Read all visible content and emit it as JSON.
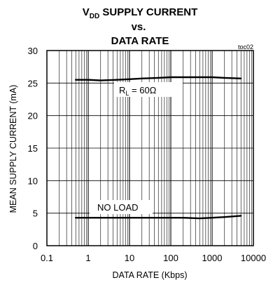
{
  "chart_data": {
    "type": "line",
    "title": {
      "line1_main": "V",
      "line1_sub": "DD",
      "line1_rest": " SUPPLY CURRENT",
      "line2": "vs.",
      "line3": "DATA RATE"
    },
    "figure_code": "toc02",
    "xlabel": "DATA RATE (Kbps)",
    "ylabel": "MEAN SUPPLY CURRENT  (mA)",
    "x_scale": "log",
    "xlim": [
      0.1,
      10000
    ],
    "ylim": [
      0,
      30
    ],
    "x_ticks": [
      "0.1",
      "1",
      "10",
      "100",
      "1000",
      "10000"
    ],
    "y_ticks": [
      "0",
      "5",
      "10",
      "15",
      "20",
      "25",
      "30"
    ],
    "grid": true,
    "series": [
      {
        "label_main": "R",
        "label_sub": "L",
        "label_rest": " = 60Ω",
        "x": [
          0.5,
          1,
          2,
          5,
          10,
          20,
          50,
          100,
          200,
          500,
          1000,
          2000,
          5000
        ],
        "y": [
          25.5,
          25.5,
          25.4,
          25.5,
          25.6,
          25.7,
          25.8,
          25.9,
          25.9,
          25.9,
          25.9,
          25.8,
          25.7
        ]
      },
      {
        "label": "NO LOAD",
        "x": [
          0.5,
          1,
          2,
          5,
          10,
          20,
          50,
          100,
          200,
          500,
          1000,
          2000,
          5000
        ],
        "y": [
          4.3,
          4.3,
          4.3,
          4.3,
          4.3,
          4.3,
          4.3,
          4.3,
          4.3,
          4.2,
          4.3,
          4.4,
          4.6
        ]
      }
    ]
  }
}
